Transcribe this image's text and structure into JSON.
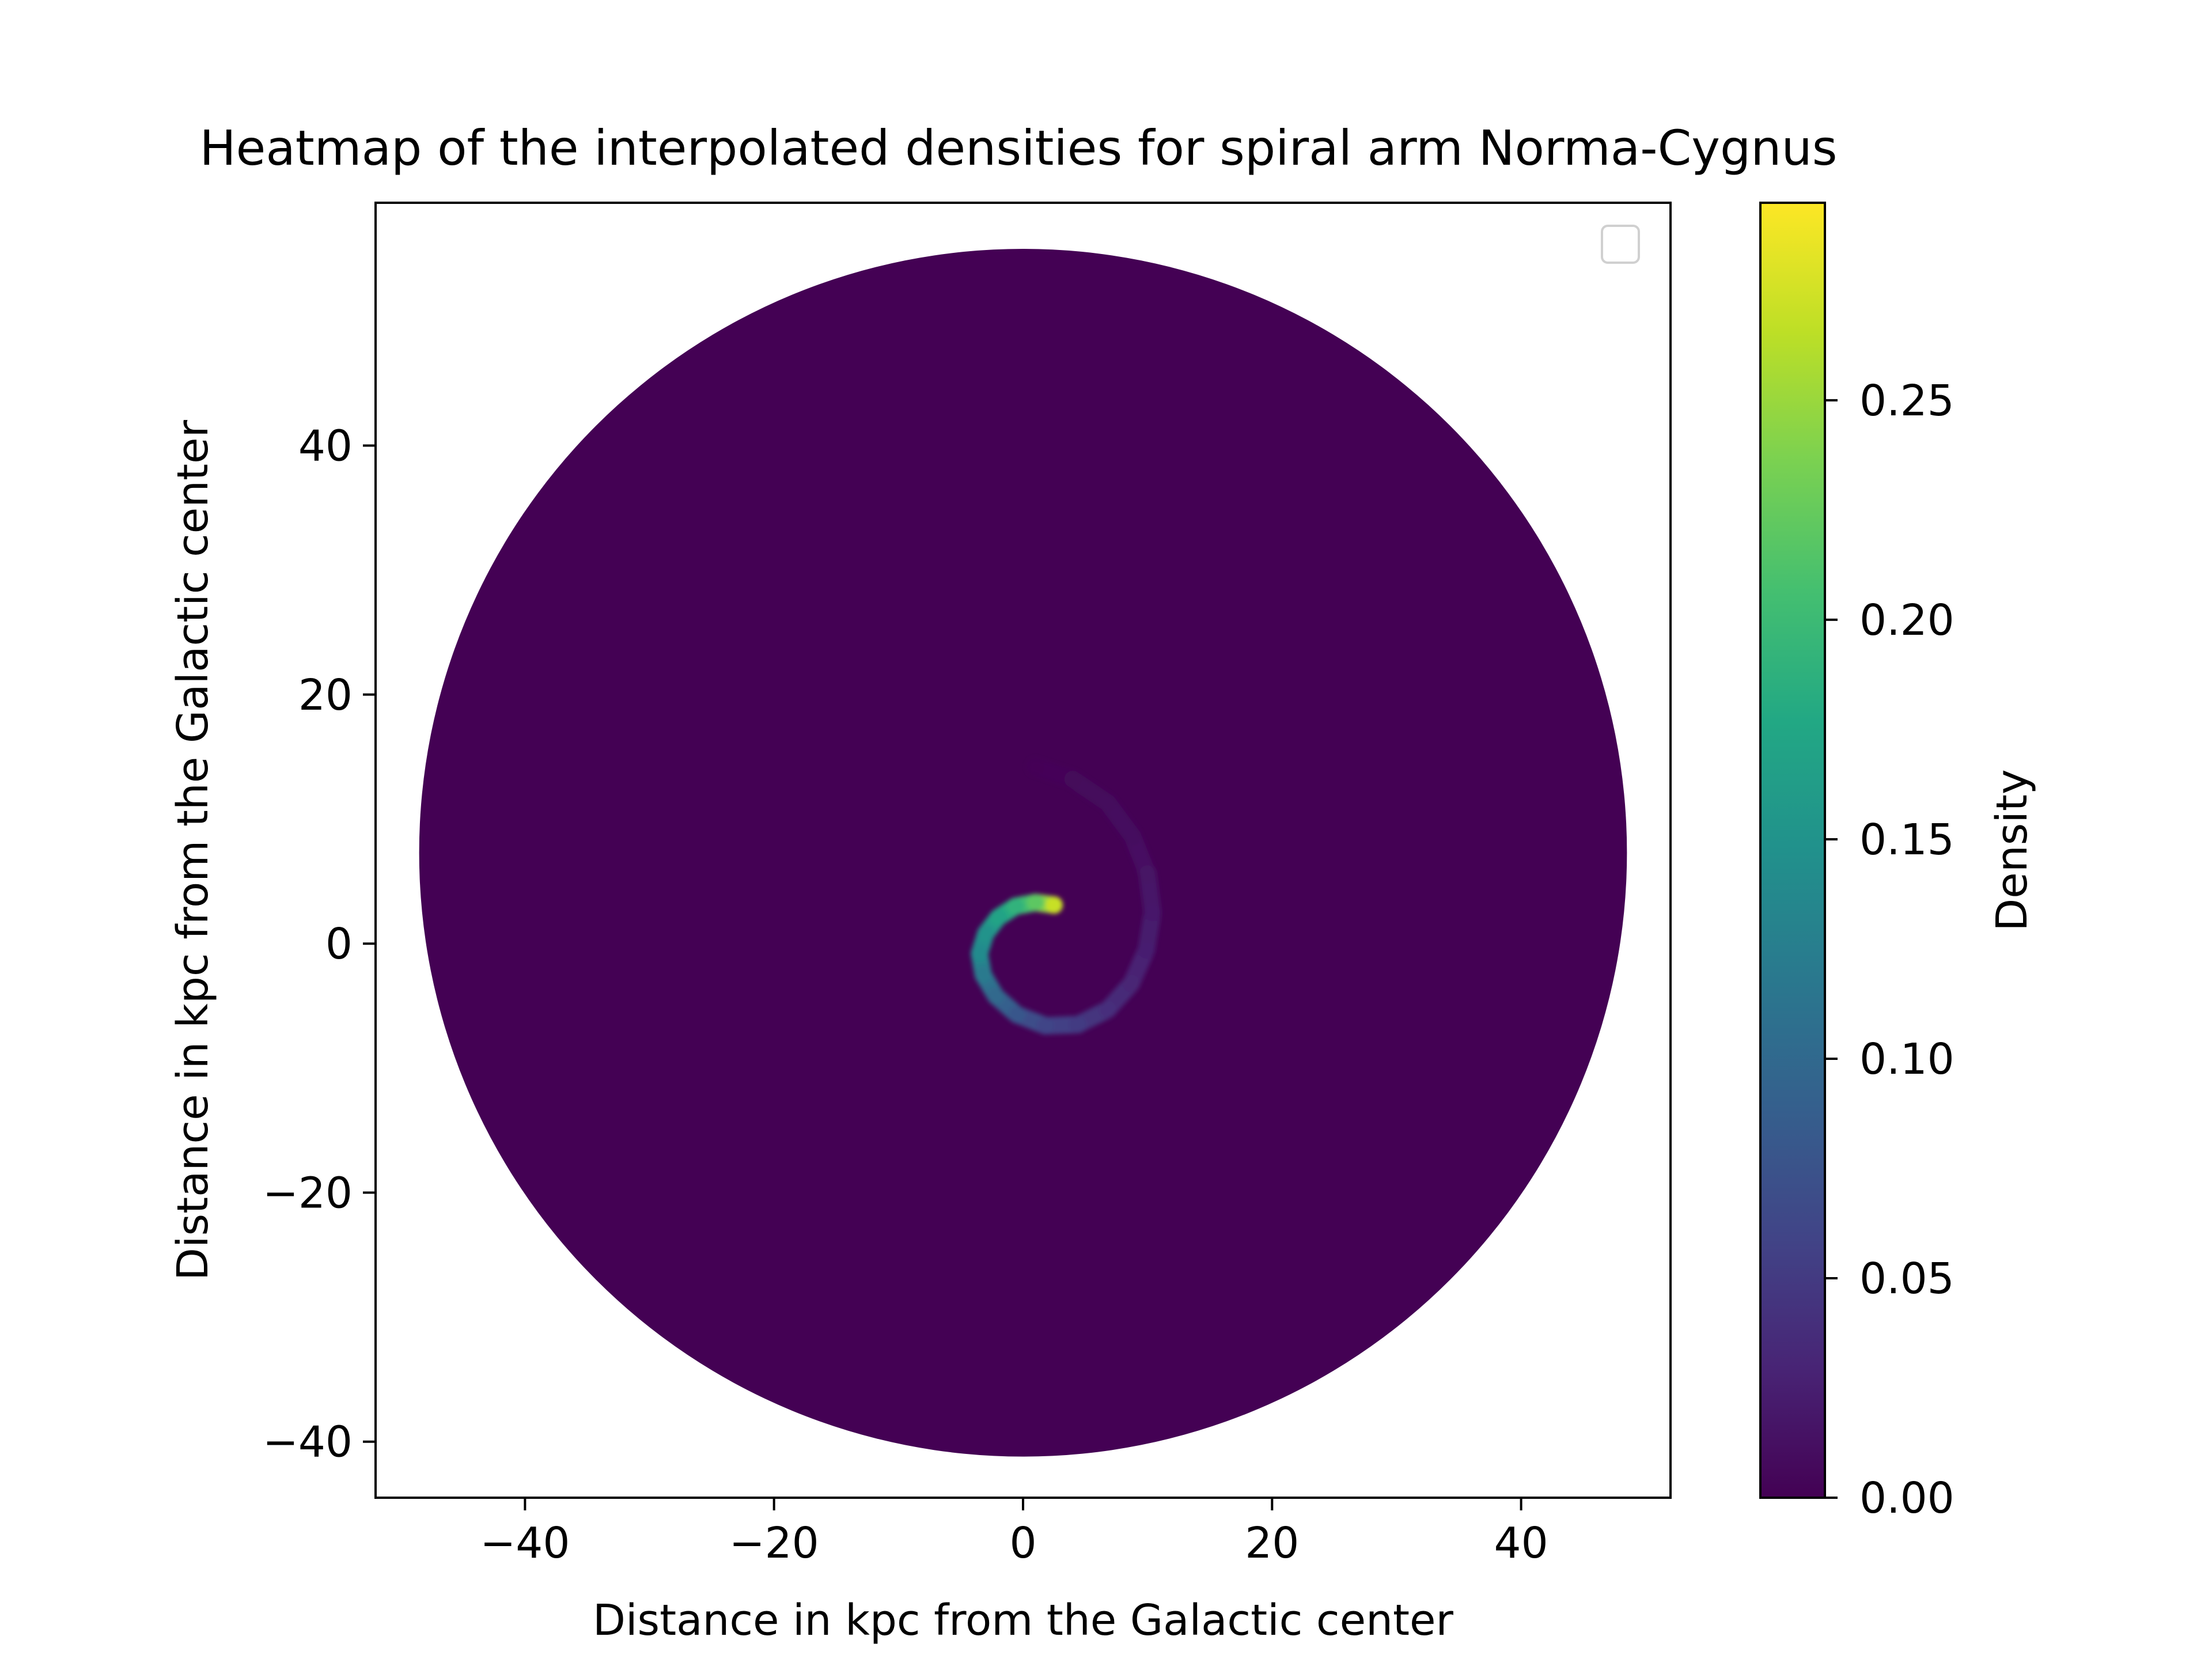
{
  "chart_data": {
    "type": "heatmap",
    "title": "Heatmap of the interpolated densities for spiral arm Norma-Cygnus",
    "xlabel": "Distance in kpc from the Galactic center",
    "ylabel": "Distance in kpc from the Galactic center",
    "xlim": [
      -52,
      52
    ],
    "ylim": [
      -44.5,
      59.5
    ],
    "x_ticks": [
      -40,
      -20,
      0,
      20,
      40
    ],
    "y_ticks": [
      -40,
      -20,
      0,
      20,
      40
    ],
    "x_tick_labels": [
      "−40",
      "−20",
      "0",
      "20",
      "40"
    ],
    "y_tick_labels": [
      "−40",
      "−20",
      "0",
      "20",
      "40"
    ],
    "colormap": "viridis",
    "colorbar": {
      "label": "Density",
      "range": [
        0.0,
        0.295
      ],
      "ticks": [
        0.0,
        0.05,
        0.1,
        0.15,
        0.2,
        0.25
      ],
      "tick_labels": [
        "0.00",
        "0.05",
        "0.10",
        "0.15",
        "0.20",
        "0.25"
      ]
    },
    "disk": {
      "center": [
        0,
        7.3
      ],
      "radius": 48.5,
      "background_density": 0.0
    },
    "spiral_arm": {
      "name": "Norma-Cygnus",
      "points": [
        {
          "x": 2.5,
          "y": 3.1,
          "density": 0.27
        },
        {
          "x": 1.0,
          "y": 3.3,
          "density": 0.22
        },
        {
          "x": -0.6,
          "y": 3.0,
          "density": 0.19
        },
        {
          "x": -2.0,
          "y": 2.1,
          "density": 0.17
        },
        {
          "x": -3.0,
          "y": 0.8,
          "density": 0.15
        },
        {
          "x": -3.5,
          "y": -0.8,
          "density": 0.14
        },
        {
          "x": -3.2,
          "y": -2.5,
          "density": 0.12
        },
        {
          "x": -2.2,
          "y": -4.2,
          "density": 0.1
        },
        {
          "x": -0.5,
          "y": -5.7,
          "density": 0.08
        },
        {
          "x": 1.8,
          "y": -6.6,
          "density": 0.06
        },
        {
          "x": 4.4,
          "y": -6.5,
          "density": 0.05
        },
        {
          "x": 6.8,
          "y": -5.3,
          "density": 0.04
        },
        {
          "x": 8.7,
          "y": -3.2,
          "density": 0.03
        },
        {
          "x": 9.9,
          "y": -0.5,
          "density": 0.025
        },
        {
          "x": 10.4,
          "y": 2.5,
          "density": 0.02
        },
        {
          "x": 10.0,
          "y": 5.6,
          "density": 0.015
        },
        {
          "x": 8.8,
          "y": 8.6,
          "density": 0.01
        },
        {
          "x": 6.8,
          "y": 11.3,
          "density": 0.008
        },
        {
          "x": 4.0,
          "y": 13.2,
          "density": 0.005
        },
        {
          "x": 1.0,
          "y": 14.2,
          "density": 0.003
        }
      ]
    },
    "legend": {
      "placement": "upper right",
      "entries": []
    }
  }
}
